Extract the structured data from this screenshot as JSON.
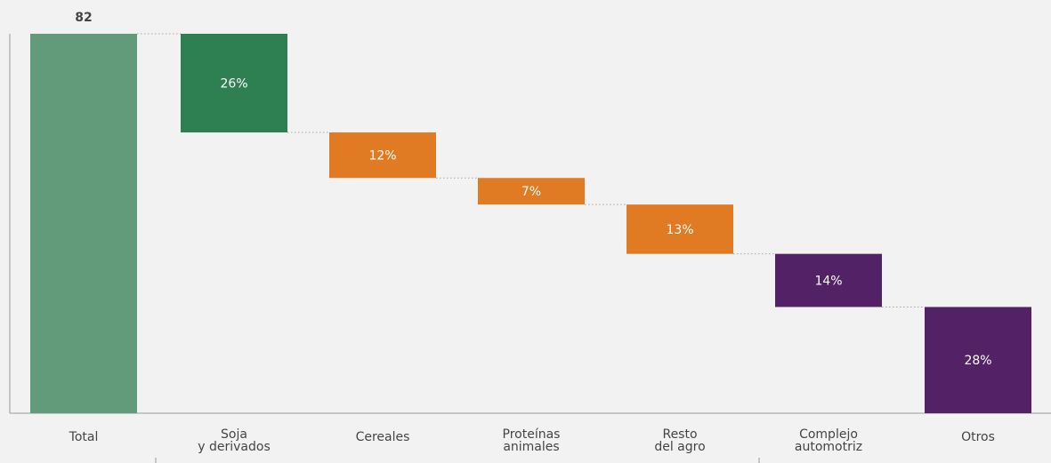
{
  "chart_data": {
    "type": "waterfall",
    "total": {
      "category": "Total",
      "value": 82,
      "label": "82",
      "color": "#629b7a"
    },
    "categories": [
      [
        "Total"
      ],
      [
        "Soja",
        "y derivados"
      ],
      [
        "Cereales"
      ],
      [
        "Proteínas",
        "animales"
      ],
      [
        "Resto",
        "del agro"
      ],
      [
        "Complejo",
        "automotriz"
      ],
      [
        "Otros"
      ]
    ],
    "segments": [
      {
        "category": "Soja y derivados",
        "percent": 26,
        "label": "26%",
        "color": "#2e8052"
      },
      {
        "category": "Cereales",
        "percent": 12,
        "label": "12%",
        "color": "#e07a23"
      },
      {
        "category": "Proteínas animales",
        "percent": 7,
        "label": "7%",
        "color": "#e07a23"
      },
      {
        "category": "Resto del agro",
        "percent": 13,
        "label": "13%",
        "color": "#e07a23"
      },
      {
        "category": "Complejo automotriz",
        "percent": 14,
        "label": "14%",
        "color": "#532166"
      },
      {
        "category": "Otros",
        "percent": 28,
        "label": "28%",
        "color": "#532166"
      }
    ],
    "ylim": [
      0,
      100
    ]
  }
}
